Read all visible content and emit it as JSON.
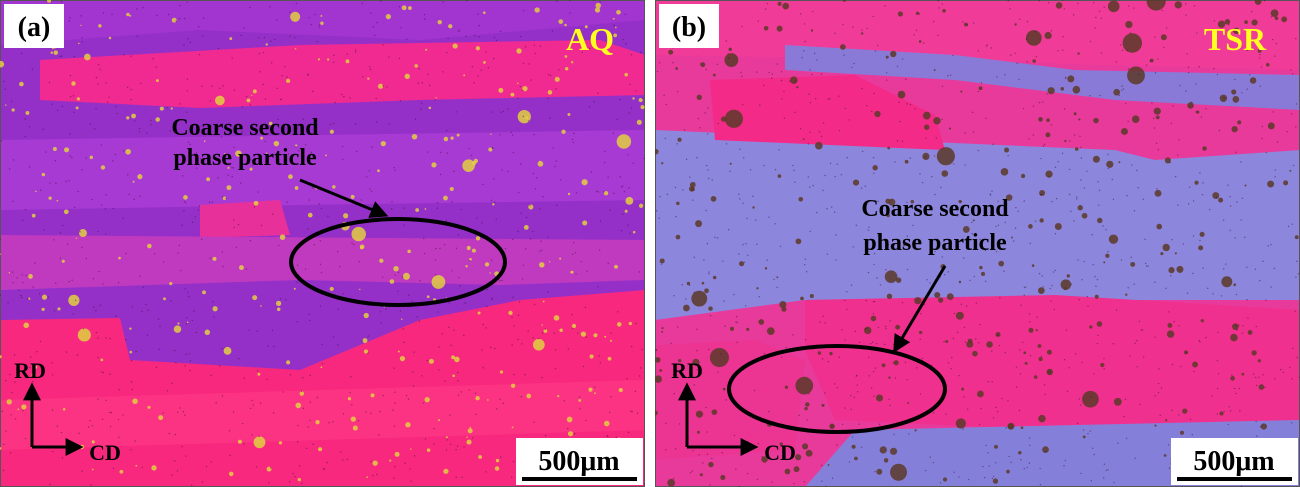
{
  "panels": [
    {
      "label": "(a)",
      "condition": "AQ",
      "annotation": [
        "Coarse second",
        "phase particle"
      ],
      "rd": "RD",
      "cd": "CD",
      "scale_bar": "500μm"
    },
    {
      "label": "(b)",
      "condition": "TSR",
      "annotation": [
        "Coarse second",
        "phase particle"
      ],
      "rd": "RD",
      "cd": "CD",
      "scale_bar": "500μm"
    }
  ]
}
